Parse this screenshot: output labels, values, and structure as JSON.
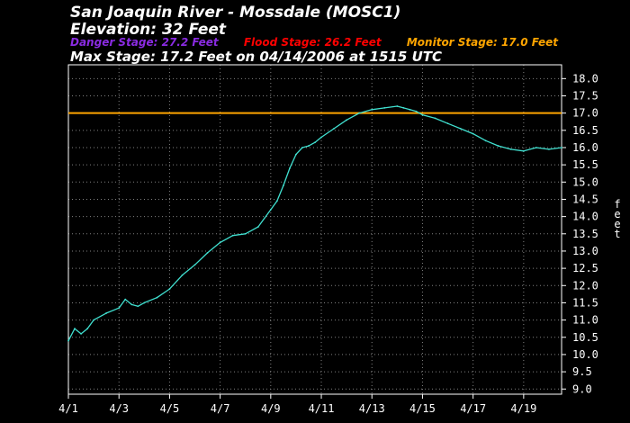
{
  "header": {
    "title": "San Joaquin River - Mossdale (MOSC1)",
    "elevation": "Elevation: 32 Feet",
    "danger": "Danger Stage: 27.2 Feet",
    "flood": "Flood Stage: 26.2 Feet",
    "monitor": "Monitor Stage: 17.0 Feet",
    "max": "Max Stage: 17.2 Feet on 04/14/2006 at 1515 UTC"
  },
  "colors": {
    "background": "#000000",
    "series": "#40e0d0",
    "danger": "#8a2be2",
    "flood": "#ff0000",
    "monitor": "#ffa500",
    "axes": "#ffffff",
    "grid": "#808080"
  },
  "chart_data": {
    "type": "line",
    "ylabel": "feet",
    "ylim": [
      8.85,
      18.4
    ],
    "xlim": [
      "4/1",
      "4/20 12:00"
    ],
    "xticks": [
      "4/1",
      "4/3",
      "4/5",
      "4/7",
      "4/9",
      "4/11",
      "4/13",
      "4/15",
      "4/17",
      "4/19"
    ],
    "yticks": [
      "9.0",
      "9.5",
      "10.0",
      "10.5",
      "11.0",
      "11.5",
      "12.0",
      "12.5",
      "13.0",
      "13.5",
      "14.0",
      "14.5",
      "15.0",
      "15.5",
      "16.0",
      "16.5",
      "17.0",
      "17.5",
      "18.0"
    ],
    "grid": true,
    "monitor_stage": 17.0,
    "series": [
      {
        "x": [
          "4/1",
          "4/1 06:00",
          "4/1 12:00",
          "4/1 18:00",
          "4/2",
          "4/2 12:00",
          "4/3",
          "4/3 06:00",
          "4/3 12:00",
          "4/3 18:00",
          "4/4",
          "4/4 12:00",
          "4/5",
          "4/5 12:00",
          "4/6",
          "4/6 12:00",
          "4/7",
          "4/7 12:00",
          "4/8",
          "4/8 12:00",
          "4/9",
          "4/9 06:00",
          "4/9 12:00",
          "4/9 18:00",
          "4/10",
          "4/10 06:00",
          "4/10 12:00",
          "4/10 18:00",
          "4/11",
          "4/11 12:00",
          "4/12",
          "4/12 12:00",
          "4/13",
          "4/13 12:00",
          "4/14",
          "4/14 06:00",
          "4/14 12:00",
          "4/14 18:00",
          "4/15",
          "4/15 12:00",
          "4/16",
          "4/16 12:00",
          "4/17",
          "4/17 12:00",
          "4/18",
          "4/18 12:00",
          "4/19",
          "4/19 12:00",
          "4/20",
          "4/20 12:00"
        ],
        "y": [
          10.4,
          10.75,
          10.6,
          10.75,
          11.0,
          11.2,
          11.35,
          11.6,
          11.45,
          11.4,
          11.5,
          11.65,
          11.9,
          12.3,
          12.6,
          12.95,
          13.25,
          13.45,
          13.5,
          13.7,
          14.2,
          14.45,
          14.9,
          15.4,
          15.8,
          16.0,
          16.05,
          16.15,
          16.3,
          16.55,
          16.8,
          17.0,
          17.1,
          17.15,
          17.2,
          17.15,
          17.1,
          17.05,
          16.95,
          16.85,
          16.7,
          16.55,
          16.4,
          16.2,
          16.05,
          15.95,
          15.9,
          16.0,
          15.95,
          16.0
        ]
      }
    ]
  }
}
